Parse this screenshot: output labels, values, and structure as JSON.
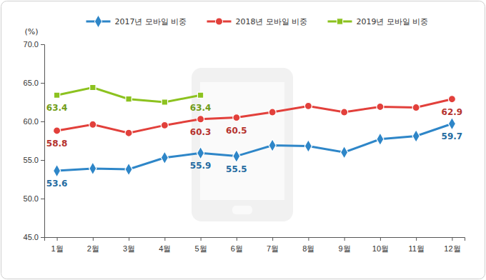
{
  "chart_data": {
    "type": "line",
    "y_label": "(%)",
    "categories": [
      "1월",
      "2월",
      "3월",
      "4월",
      "5월",
      "6월",
      "7월",
      "8월",
      "9월",
      "10월",
      "11월",
      "12월"
    ],
    "ylim": [
      45,
      70
    ],
    "yticks": [
      {
        "value": 45,
        "label": "45.0"
      },
      {
        "value": 50,
        "label": "50.0"
      },
      {
        "value": 55,
        "label": "55.0"
      },
      {
        "value": 60,
        "label": "60.0"
      },
      {
        "value": 65,
        "label": "65.0"
      },
      {
        "value": 70,
        "label": "70.0"
      }
    ],
    "grid": false,
    "legend": "top",
    "series": [
      {
        "name": "2017년 모바일 비중",
        "color": "#2e86c8",
        "marker": "diamond",
        "values": [
          53.6,
          53.9,
          53.8,
          55.3,
          55.9,
          55.5,
          56.9,
          56.8,
          56.0,
          57.7,
          58.1,
          59.7
        ],
        "value_labels": [
          "53.6",
          null,
          null,
          null,
          "55.9",
          "55.5",
          null,
          null,
          null,
          null,
          null,
          "59.7"
        ]
      },
      {
        "name": "2018년 모바일 비중",
        "color": "#e2403b",
        "marker": "circle",
        "values": [
          58.8,
          59.6,
          58.5,
          59.5,
          60.3,
          60.5,
          61.2,
          62.0,
          61.2,
          61.9,
          61.8,
          62.9
        ],
        "value_labels": [
          "58.8",
          null,
          null,
          null,
          "60.3",
          "60.5",
          null,
          null,
          null,
          null,
          null,
          "62.9"
        ]
      },
      {
        "name": "2019년 모바일 비중",
        "color": "#8cc21f",
        "marker": "square",
        "values": [
          63.4,
          64.4,
          62.9,
          62.5,
          63.4,
          null,
          null,
          null,
          null,
          null,
          null,
          null
        ],
        "value_labels": [
          "63.4",
          null,
          null,
          null,
          "63.4",
          null,
          null,
          null,
          null,
          null,
          null,
          null
        ]
      }
    ]
  }
}
